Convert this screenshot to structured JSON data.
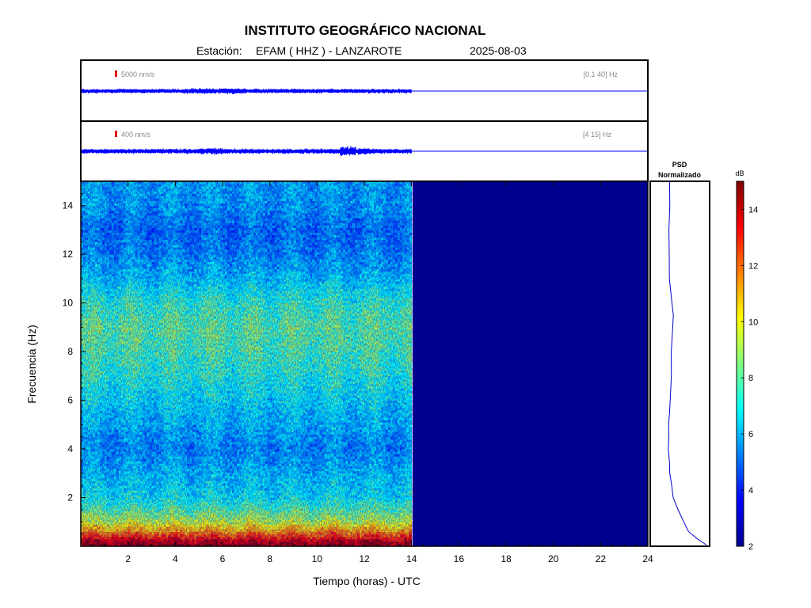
{
  "header": {
    "title": "INSTITUTO GEOGRÁFICO NACIONAL",
    "station_label": "Estación:",
    "station": "EFAM ( HHZ ) - LANZAROTE",
    "date": "2025-08-03"
  },
  "colors": {
    "trace": "#0000ff",
    "no_data": "#00008f",
    "scale_marker": "#dd0000",
    "frame": "#000000"
  },
  "chart_data": [
    {
      "type": "line",
      "name": "seismogram-broadband",
      "scale_label": "5000 nm/s",
      "filter_label": "[0.1 40] Hz",
      "xlim": [
        0,
        24
      ],
      "data_until_hour": 14,
      "trace_description": "continuous low-amplitude noise, flat line after 14 h"
    },
    {
      "type": "line",
      "name": "seismogram-filtered",
      "scale_label": "400 nm/s",
      "filter_label": "[4 15] Hz",
      "xlim": [
        0,
        24
      ],
      "data_until_hour": 14,
      "trace_description": "continuous noise with small bursts near 11.5 h, flat line after 14 h"
    },
    {
      "type": "heatmap",
      "name": "spectrogram",
      "xlabel": "Tiempo (horas) - UTC",
      "ylabel": "Frecuencia  (Hz)",
      "xlim": [
        0,
        24
      ],
      "ylim": [
        0,
        15
      ],
      "xticks": [
        2,
        4,
        6,
        8,
        10,
        12,
        14,
        16,
        18,
        20,
        22,
        24
      ],
      "yticks": [
        2,
        4,
        6,
        8,
        10,
        12,
        14
      ],
      "data_until_hour": 14,
      "colormap": "jet",
      "value_range_db": [
        2,
        15
      ],
      "frequency_profile_db": [
        {
          "f": 0.1,
          "db": 14.5
        },
        {
          "f": 0.3,
          "db": 13.5
        },
        {
          "f": 0.6,
          "db": 11.5
        },
        {
          "f": 1.0,
          "db": 9.5
        },
        {
          "f": 1.5,
          "db": 8.0
        },
        {
          "f": 2.0,
          "db": 7.0
        },
        {
          "f": 3.0,
          "db": 6.3
        },
        {
          "f": 4.0,
          "db": 5.6
        },
        {
          "f": 5.0,
          "db": 6.2
        },
        {
          "f": 6.0,
          "db": 6.8
        },
        {
          "f": 7.0,
          "db": 7.4
        },
        {
          "f": 8.0,
          "db": 7.9
        },
        {
          "f": 9.0,
          "db": 8.2
        },
        {
          "f": 10.0,
          "db": 7.6
        },
        {
          "f": 11.0,
          "db": 6.4
        },
        {
          "f": 12.0,
          "db": 5.6
        },
        {
          "f": 13.0,
          "db": 5.2
        },
        {
          "f": 14.0,
          "db": 5.9
        },
        {
          "f": 15.0,
          "db": 6.0
        }
      ]
    },
    {
      "type": "line",
      "name": "psd-normalizado",
      "title_line1": "PSD",
      "title_line2": "Normalizado",
      "ylim": [
        0,
        15
      ],
      "xlim": [
        0,
        1
      ],
      "points": [
        {
          "f": 0.05,
          "v": 0.95
        },
        {
          "f": 0.3,
          "v": 0.75
        },
        {
          "f": 0.6,
          "v": 0.55
        },
        {
          "f": 1.0,
          "v": 0.45
        },
        {
          "f": 1.5,
          "v": 0.33
        },
        {
          "f": 2.0,
          "v": 0.22
        },
        {
          "f": 2.5,
          "v": 0.17
        },
        {
          "f": 3.0,
          "v": 0.14
        },
        {
          "f": 3.5,
          "v": 0.12
        },
        {
          "f": 4.0,
          "v": 0.1
        },
        {
          "f": 4.5,
          "v": 0.11
        },
        {
          "f": 5.0,
          "v": 0.11
        },
        {
          "f": 5.5,
          "v": 0.13
        },
        {
          "f": 6.0,
          "v": 0.14
        },
        {
          "f": 7.0,
          "v": 0.16
        },
        {
          "f": 8.0,
          "v": 0.18
        },
        {
          "f": 9.0,
          "v": 0.19
        },
        {
          "f": 9.5,
          "v": 0.21
        },
        {
          "f": 10.0,
          "v": 0.18
        },
        {
          "f": 11.0,
          "v": 0.14
        },
        {
          "f": 12.0,
          "v": 0.13
        },
        {
          "f": 13.0,
          "v": 0.12
        },
        {
          "f": 14.0,
          "v": 0.13
        },
        {
          "f": 15.0,
          "v": 0.12
        }
      ]
    },
    {
      "type": "heatmap",
      "name": "colorbar",
      "title": "dB",
      "ylim": [
        2,
        15
      ],
      "ticks": [
        2,
        4,
        6,
        8,
        10,
        12,
        14
      ]
    }
  ]
}
